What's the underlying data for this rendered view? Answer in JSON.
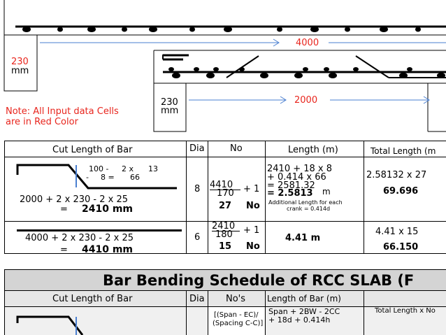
{
  "drawing": {
    "span_main": "4000",
    "support_left_1": "230",
    "support_left_1_unit": "mm",
    "span_secondary": "2000",
    "support_left_2": "230",
    "support_left_2_unit": "mm",
    "note_line1": "Note: All Input data Cells",
    "note_line2": "are in Red Color"
  },
  "table1": {
    "headers": {
      "cut_length": "Cut Length of Bar",
      "dia": "Dia",
      "no": "No",
      "length": "Length (m)",
      "total_length": "Total Length (m"
    },
    "row1": {
      "shape_top1": "100 -",
      "shape_top2": "2 x",
      "shape_top3": "13",
      "shape_mid1": "-",
      "shape_mid2": "8 =",
      "shape_mid3": "66",
      "calc": "2000  + 2  x   230   -  2  x  25",
      "result_eq": "=",
      "result": "2410   mm",
      "dia": "8",
      "no_num": "4410",
      "no_den": "170",
      "no_plus": "+ 1",
      "no_result": "27",
      "no_unit": "No",
      "len_l1": "2410  + 18   x 8",
      "len_l2": "+  0.414   x   66",
      "len_l3": "= 2581.32",
      "len_l4": "= 2.5813",
      "len_unit": "m",
      "len_note1": "Additional Length for each",
      "len_note2": "crank = 0.414d",
      "total_l1": "2.58132  x  27",
      "total_l2": "69.696"
    },
    "row2": {
      "calc": "4000    + 2  x  230   -  2  x  25",
      "result_eq": "=",
      "result": "4410   mm",
      "dia": "6",
      "no_num": "2410",
      "no_den": "180",
      "no_plus": "+ 1",
      "no_result": "15",
      "no_unit": "No",
      "length": "4.41 m",
      "total_l1": "4.41    x  15",
      "total_l2": "66.150"
    }
  },
  "table2": {
    "title": "Bar Bending Schedule of RCC SLAB (F",
    "headers": {
      "cut_length": "Cut Length of Bar",
      "dia": "Dia",
      "no": "No's",
      "length": "Length of Bar (m)",
      "total_length": "Total Length  x No"
    },
    "row1": {
      "no_l1": "[(Span - EC)/",
      "no_l2": "(Spacing C-C)]",
      "len_l1": "Span  +   2BW  -   2CC",
      "len_l2": "+   18d   + 0.414h"
    }
  },
  "colors": {
    "input_red": "#e8251d",
    "arrow_blue": "#4a7fd0",
    "header_gray": "#d4d4d4"
  }
}
